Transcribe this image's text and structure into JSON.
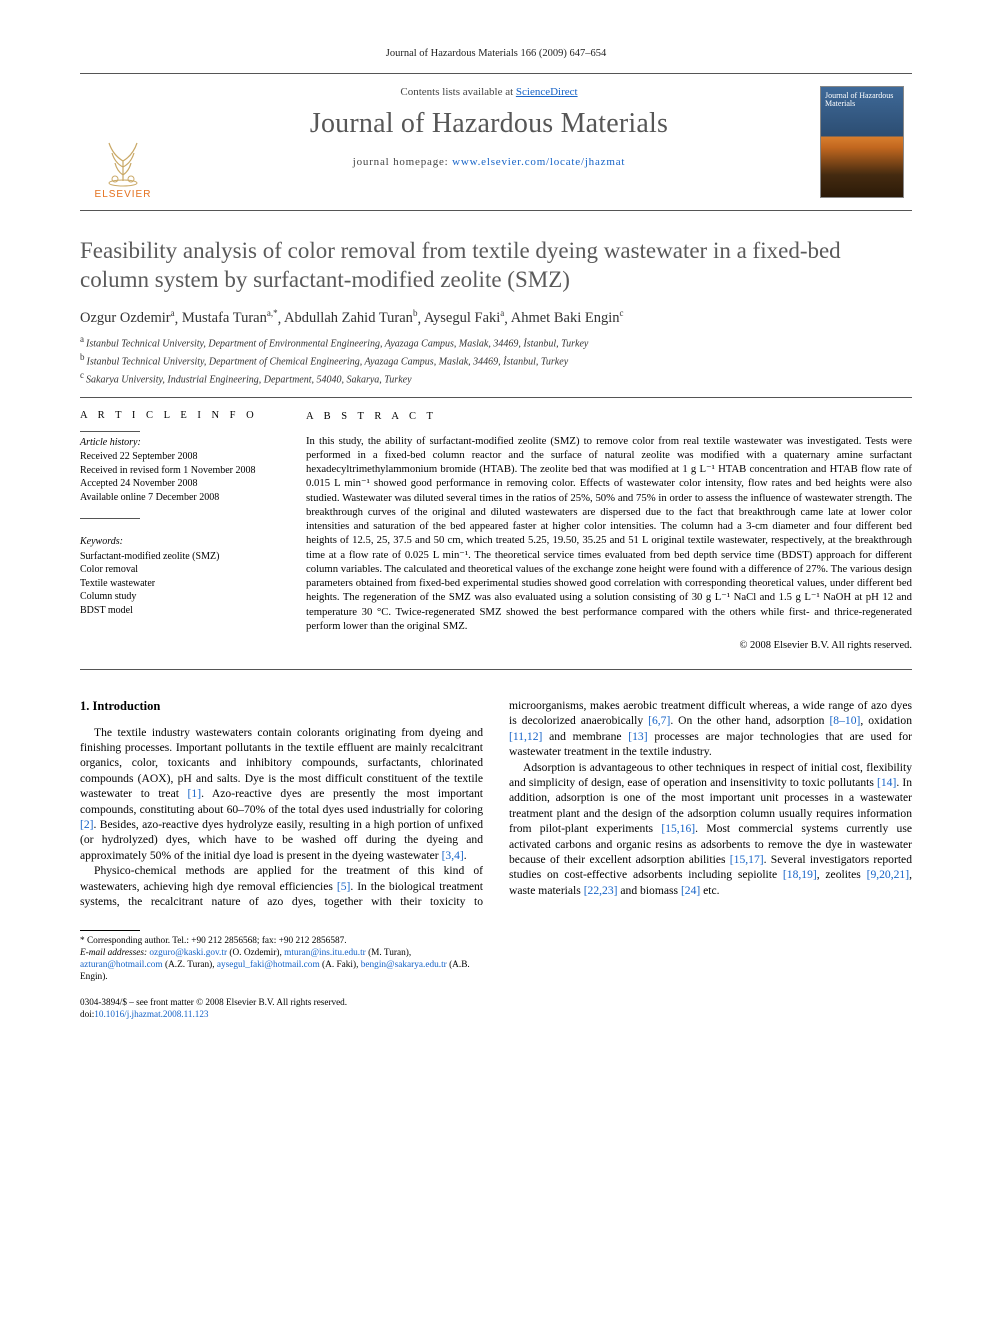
{
  "running_head": "Journal of Hazardous Materials 166 (2009) 647–654",
  "masthead": {
    "contents_prefix": "Contents lists available at ",
    "contents_link": "ScienceDirect",
    "journal_title": "Journal of Hazardous Materials",
    "homepage_label": "journal homepage: ",
    "homepage_url": "www.elsevier.com/locate/jhazmat",
    "publisher_name": "ELSEVIER",
    "cover_title": "Journal of Hazardous Materials",
    "colors": {
      "link": "#1663c7",
      "logo_orange": "#e4701e",
      "title_grey": "#565656",
      "border": "#555555"
    }
  },
  "article": {
    "title": "Feasibility analysis of color removal from textile dyeing wastewater in a fixed-bed column system by surfactant-modified zeolite (SMZ)",
    "authors_html_parts": [
      {
        "name": "Ozgur Ozdemir",
        "sup": "a"
      },
      {
        "name": "Mustafa Turan",
        "sup": "a,*"
      },
      {
        "name": "Abdullah Zahid Turan",
        "sup": "b"
      },
      {
        "name": "Aysegul Faki",
        "sup": "a"
      },
      {
        "name": "Ahmet Baki Engin",
        "sup": "c"
      }
    ],
    "affiliations": [
      {
        "marker": "a",
        "text": "Istanbul Technical University, Department of Environmental Engineering, Ayazaga Campus, Maslak, 34469, İstanbul, Turkey"
      },
      {
        "marker": "b",
        "text": "Istanbul Technical University, Department of Chemical Engineering, Ayazaga Campus, Maslak, 34469, İstanbul, Turkey"
      },
      {
        "marker": "c",
        "text": "Sakarya University, Industrial Engineering, Department, 54040, Sakarya, Turkey"
      }
    ],
    "info_head_left": "A R T I C L E   I N F O",
    "info_head_right": "A B S T R A C T",
    "history_label": "Article history:",
    "history": [
      "Received 22 September 2008",
      "Received in revised form 1 November 2008",
      "Accepted 24 November 2008",
      "Available online 7 December 2008"
    ],
    "keywords_label": "Keywords:",
    "keywords": [
      "Surfactant-modified zeolite (SMZ)",
      "Color removal",
      "Textile wastewater",
      "Column study",
      "BDST model"
    ],
    "abstract": "In this study, the ability of surfactant-modified zeolite (SMZ) to remove color from real textile wastewater was investigated. Tests were performed in a fixed-bed column reactor and the surface of natural zeolite was modified with a quaternary amine surfactant hexadecyltrimethylammonium bromide (HTAB). The zeolite bed that was modified at 1 g L⁻¹ HTAB concentration and HTAB flow rate of 0.015 L min⁻¹ showed good performance in removing color. Effects of wastewater color intensity, flow rates and bed heights were also studied. Wastewater was diluted several times in the ratios of 25%, 50% and 75% in order to assess the influence of wastewater strength. The breakthrough curves of the original and diluted wastewaters are dispersed due to the fact that breakthrough came late at lower color intensities and saturation of the bed appeared faster at higher color intensities. The column had a 3-cm diameter and four different bed heights of 12.5, 25, 37.5 and 50 cm, which treated 5.25, 19.50, 35.25 and 51 L original textile wastewater, respectively, at the breakthrough time at a flow rate of 0.025 L min⁻¹. The theoretical service times evaluated from bed depth service time (BDST) approach for different column variables. The calculated and theoretical values of the exchange zone height were found with a difference of 27%. The various design parameters obtained from fixed-bed experimental studies showed good correlation with corresponding theoretical values, under different bed heights. The regeneration of the SMZ was also evaluated using a solution consisting of 30 g L⁻¹ NaCl and 1.5 g L⁻¹ NaOH at pH 12 and temperature 30 °C. Twice-regenerated SMZ showed the best performance compared with the others while first- and thrice-regenerated perform lower than the original SMZ.",
    "copyright": "© 2008 Elsevier B.V. All rights reserved."
  },
  "body": {
    "section_number": "1.",
    "section_title": "Introduction",
    "para1": "The textile industry wastewaters contain colorants originating from dyeing and finishing processes. Important pollutants in the textile effluent are mainly recalcitrant organics, color, toxicants and inhibitory compounds, surfactants, chlorinated compounds (AOX), pH and salts. Dye is the most difficult constituent of the textile wastewater to treat [1]. Azo-reactive dyes are presently the most important compounds, constituting about 60–70% of the total dyes used industrially for coloring [2]. Besides, azo-reactive dyes hydrolyze easily, resulting in a high portion of unfixed (or hydrolyzed) dyes, which have to be washed off during the dyeing and approximately 50% of the initial dye load is present in the dyeing wastewater [3,4].",
    "para2": "Physico-chemical methods are applied for the treatment of this kind of wastewaters, achieving high dye removal efficiencies [5]. In the biological treatment systems, the recalcitrant nature of azo dyes, together with their toxicity to microorganisms, makes aerobic treatment difficult whereas, a wide range of azo dyes is decolorized anaerobically [6,7]. On the other hand, adsorption [8–10], oxidation [11,12] and membrane [13] processes are major technologies that are used for wastewater treatment in the textile industry.",
    "para3": "Adsorption is advantageous to other techniques in respect of initial cost, flexibility and simplicity of design, ease of operation and insensitivity to toxic pollutants [14]. In addition, adsorption is one of the most important unit processes in a wastewater treatment plant and the design of the adsorption column usually requires information from pilot-plant experiments [15,16]. Most commercial systems currently use activated carbons and organic resins as adsorbents to remove the dye in wastewater because of their excellent adsorption abilities [15,17]. Several investigators reported studies on cost-effective adsorbents including sepiolite [18,19], zeolites [9,20,21], waste materials [22,23] and biomass [24] etc.",
    "ref_links": [
      "[1]",
      "[2]",
      "[3,4]",
      "[5]",
      "[6,7]",
      "[8–10]",
      "[11,12]",
      "[13]",
      "[14]",
      "[15,16]",
      "[15,17]",
      "[18,19]",
      "[9,20,21]",
      "[22,23]",
      "[24]"
    ]
  },
  "footnotes": {
    "corr_label": "* Corresponding author. Tel.: +90 212 2856568; fax: +90 212 2856587.",
    "email_label": "E-mail addresses: ",
    "emails": [
      {
        "addr": "ozguro@kaski.gov.tr",
        "who": "(O. Ozdemir)"
      },
      {
        "addr": "mturan@ins.itu.edu.tr",
        "who": "(M. Turan)"
      },
      {
        "addr": "azturan@hotmail.com",
        "who": "(A.Z. Turan)"
      },
      {
        "addr": "aysegul_faki@hotmail.com",
        "who": "(A. Faki)"
      },
      {
        "addr": "bengin@sakarya.edu.tr",
        "who": "(A.B. Engin)"
      }
    ]
  },
  "footer": {
    "line1": "0304-3894/$ – see front matter © 2008 Elsevier B.V. All rights reserved.",
    "doi_label": "doi:",
    "doi": "10.1016/j.jhazmat.2008.11.123"
  }
}
